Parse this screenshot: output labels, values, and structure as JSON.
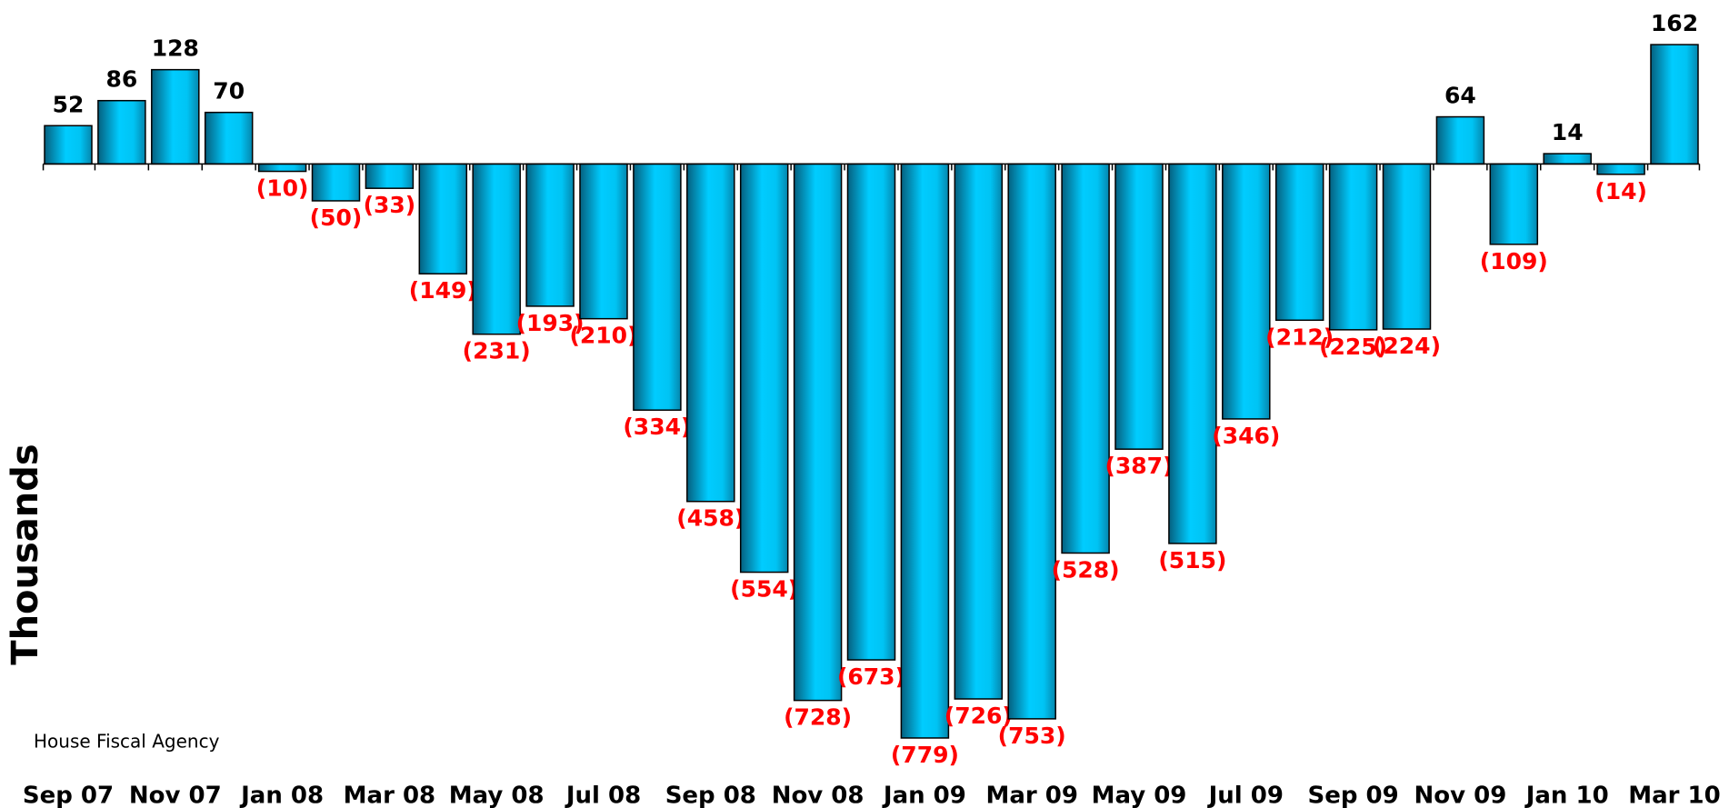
{
  "chart_data": {
    "type": "bar",
    "y_label": "Thousands",
    "source": "House Fiscal Agency",
    "categories": [
      "Sep 07",
      null,
      "Nov 07",
      null,
      "Jan 08",
      null,
      "Mar 08",
      null,
      "May 08",
      null,
      "Jul 08",
      null,
      "Sep 08",
      null,
      "Nov 08",
      null,
      "Jan 09",
      null,
      "Mar 09",
      null,
      "May 09",
      null,
      "Jul 09",
      null,
      "Sep 09",
      null,
      "Nov 09",
      null,
      "Jan 10",
      null,
      "Mar 10"
    ],
    "values": [
      52,
      86,
      128,
      70,
      -10,
      -50,
      -33,
      -149,
      -231,
      -193,
      -210,
      -334,
      -458,
      -554,
      -728,
      -673,
      -779,
      -726,
      -753,
      -528,
      -387,
      -515,
      -346,
      -212,
      -225,
      -224,
      64,
      -109,
      14,
      -14,
      162
    ],
    "value_labels": [
      "52",
      "86",
      "128",
      "70",
      "(10)",
      "(50)",
      "(33)",
      "(149)",
      "(231)",
      "(193)",
      "(210)",
      "(334)",
      "(458)",
      "(554)",
      "(728)",
      "(673)",
      "(779)",
      "(726)",
      "(753)",
      "(528)",
      "(387)",
      "(515)",
      "(346)",
      "(212)",
      "(225)",
      "(224)",
      "64",
      "(109)",
      "14",
      "(14)",
      "162"
    ],
    "color": "#00c8f8",
    "positive_label_color": "#000000",
    "negative_label_color": "#ff0000",
    "ylim": [
      -800,
      180
    ]
  }
}
